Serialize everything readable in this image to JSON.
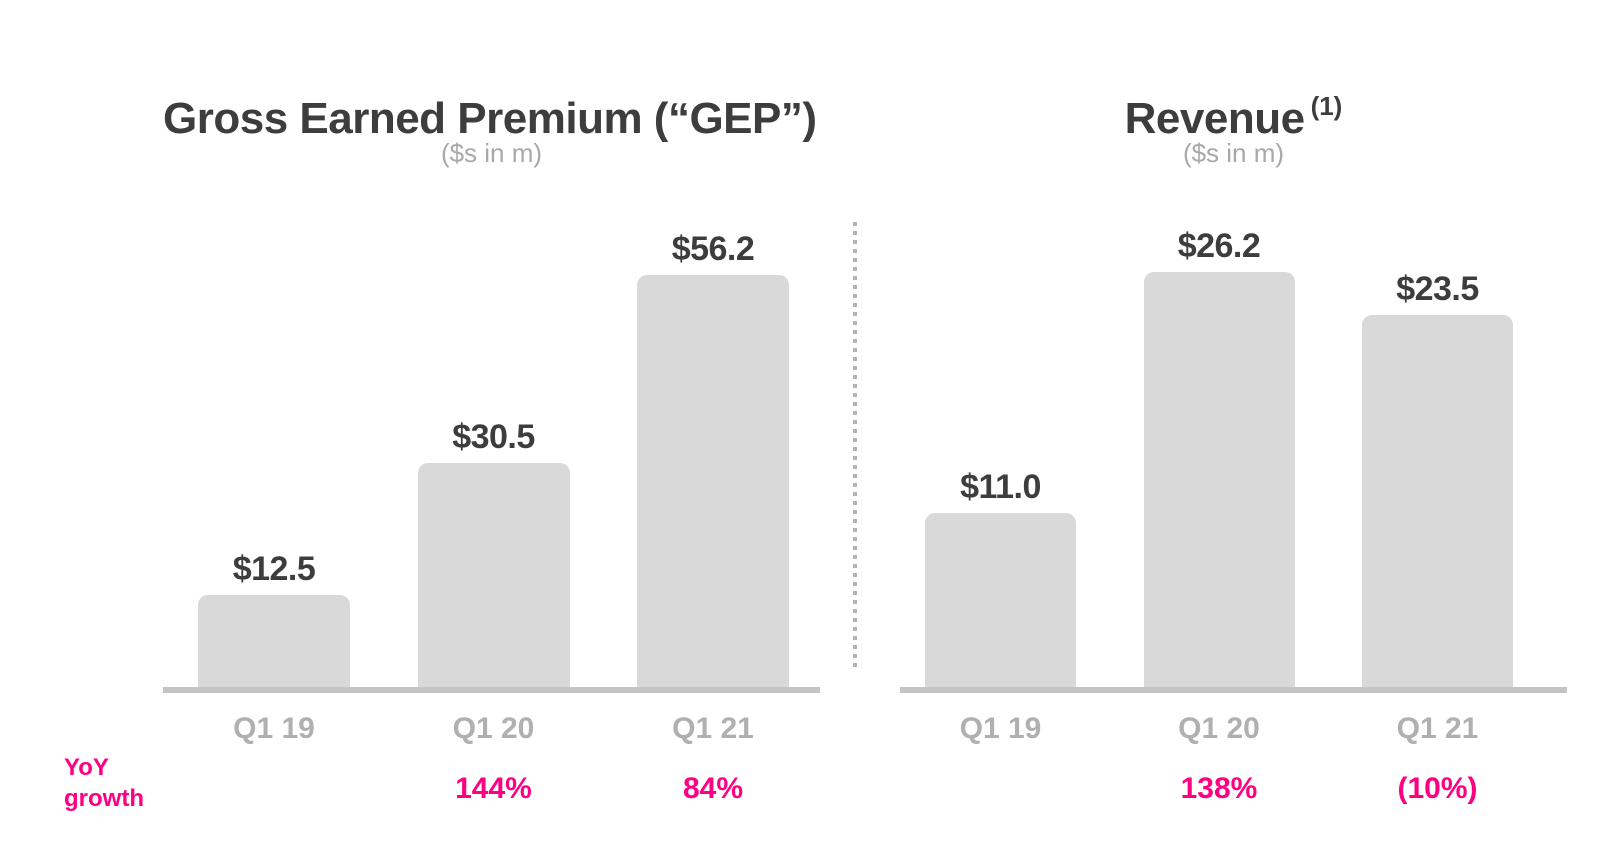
{
  "page": {
    "background": "#ffffff"
  },
  "colors": {
    "bar_fill": "#d9d9d9",
    "axis_line": "#c4c4c4",
    "title_text": "#3d3d3d",
    "subtitle_text": "#a8a8a8",
    "category_text": "#b0b0b0",
    "value_text": "#3d3d3d",
    "accent_pink": "#ff0083",
    "divider_dots": "#b3b3b3"
  },
  "yoy_row": {
    "label_line1": "YoY",
    "label_line2": "growth"
  },
  "chart_data": [
    {
      "type": "bar",
      "title": "Gross Earned Premium (“GEP”)",
      "title_superscript": "",
      "subtitle": "($s in m)",
      "categories": [
        "Q1 19",
        "Q1 20",
        "Q1 21"
      ],
      "values": [
        12.5,
        30.5,
        56.2
      ],
      "value_labels": [
        "$12.5",
        "$30.5",
        "$56.2"
      ],
      "yoy_growth": [
        "",
        "144%",
        "84%"
      ],
      "unit": "$s in m",
      "grid": false,
      "legend": false
    },
    {
      "type": "bar",
      "title": "Revenue",
      "title_superscript": "(1)",
      "subtitle": "($s in m)",
      "categories": [
        "Q1 19",
        "Q1 20",
        "Q1 21"
      ],
      "values": [
        11.0,
        26.2,
        23.5
      ],
      "value_labels": [
        "$11.0",
        "$26.2",
        "$23.5"
      ],
      "yoy_growth": [
        "",
        "138%",
        "(10%)"
      ],
      "unit": "$s in m",
      "grid": false,
      "legend": false
    }
  ]
}
